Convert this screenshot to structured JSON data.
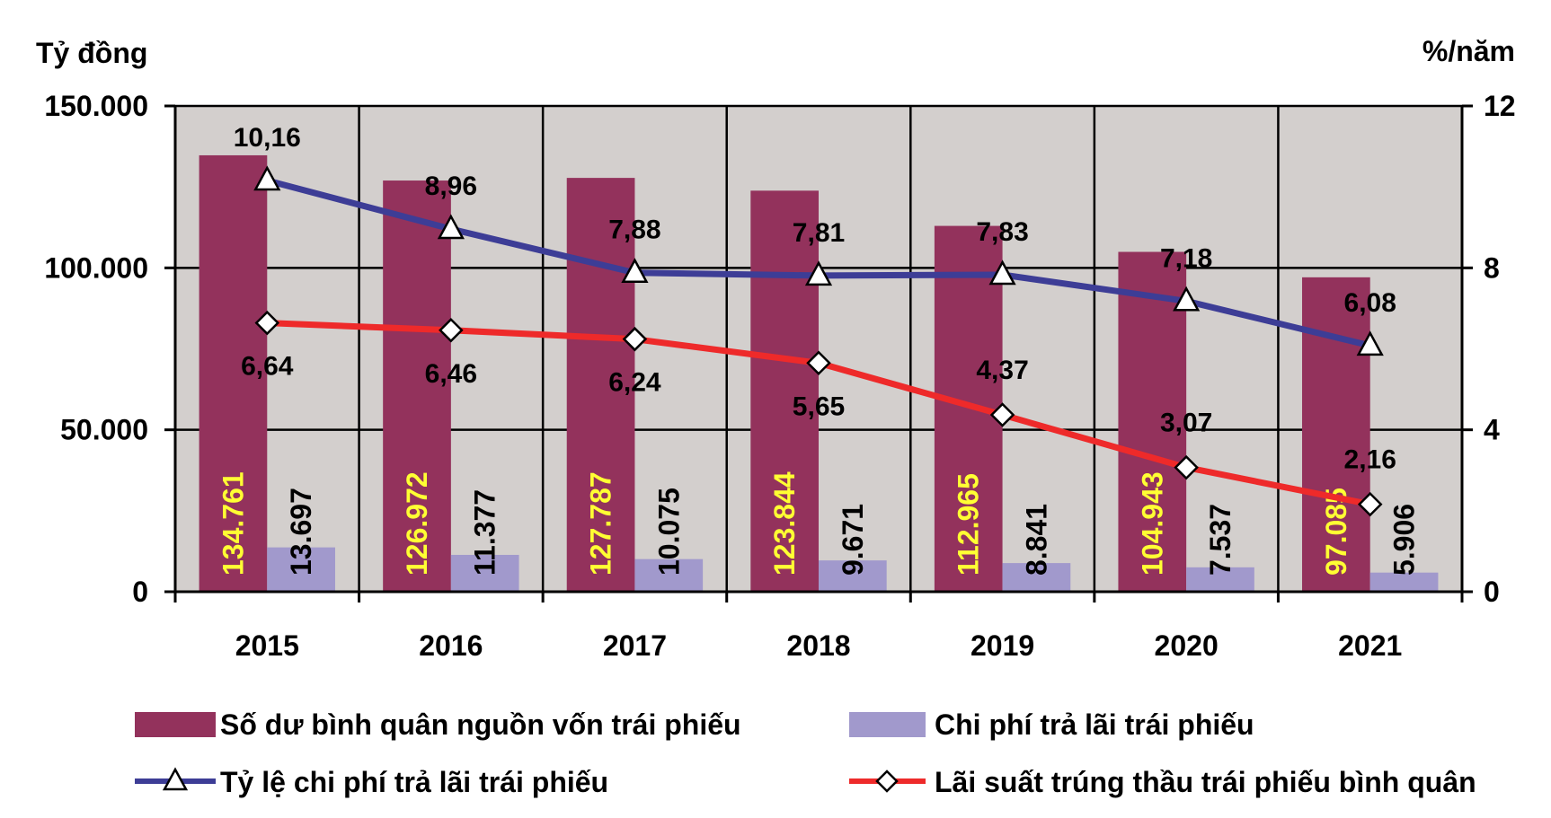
{
  "chart_data": {
    "type": "bar",
    "left_axis_unit": "Tỷ đồng",
    "right_axis_unit": "%/năm",
    "categories": [
      "2015",
      "2016",
      "2017",
      "2018",
      "2019",
      "2020",
      "2021"
    ],
    "left_ylim": [
      0,
      150000
    ],
    "right_ylim": [
      0,
      12
    ],
    "left_ticks": [
      "0",
      "50.000",
      "100.000",
      "150.000"
    ],
    "left_tick_values": [
      0,
      50000,
      100000,
      150000
    ],
    "right_ticks": [
      "0",
      "4",
      "8",
      "12"
    ],
    "right_tick_values": [
      0,
      4,
      8,
      12
    ],
    "grid": true,
    "legend_position": "bottom",
    "series": [
      {
        "name": "Số dư bình quân nguồn vốn trái phiếu",
        "kind": "bar",
        "axis": "left",
        "color": "#93325c",
        "label_color": "#ffff33",
        "values": [
          134761,
          126972,
          127787,
          123844,
          112965,
          104943,
          97085
        ],
        "labels": [
          "134.761",
          "126.972",
          "127.787",
          "123.844",
          "112.965",
          "104.943",
          "97.085"
        ]
      },
      {
        "name": "Chi phí trả lãi trái phiếu",
        "kind": "bar",
        "axis": "left",
        "color": "#a199cc",
        "label_color": "#000000",
        "values": [
          13697,
          11377,
          10075,
          9671,
          8841,
          7537,
          5906
        ],
        "labels": [
          "13.697",
          "11.377",
          "10.075",
          "9.671",
          "8.841",
          "7.537",
          "5.906"
        ]
      },
      {
        "name": "Tỷ lệ chi phí trả lãi trái phiếu",
        "kind": "line",
        "axis": "right",
        "marker": "triangle",
        "color": "#3d3d96",
        "values": [
          10.16,
          8.96,
          7.88,
          7.81,
          7.83,
          7.18,
          6.08
        ],
        "labels": [
          "10,16",
          "8,96",
          "7,88",
          "7,81",
          "7,83",
          "7,18",
          "6,08"
        ]
      },
      {
        "name": "Lãi suất trúng thầu trái phiếu bình quân",
        "kind": "line",
        "axis": "right",
        "marker": "diamond",
        "color": "#ee2a2a",
        "values": [
          6.64,
          6.46,
          6.24,
          5.65,
          4.37,
          3.07,
          2.16
        ],
        "labels": [
          "6,64",
          "6,46",
          "6,24",
          "5,65",
          "4,37",
          "3,07",
          "2,16"
        ]
      }
    ],
    "plot_background": "#d3cfcd"
  }
}
